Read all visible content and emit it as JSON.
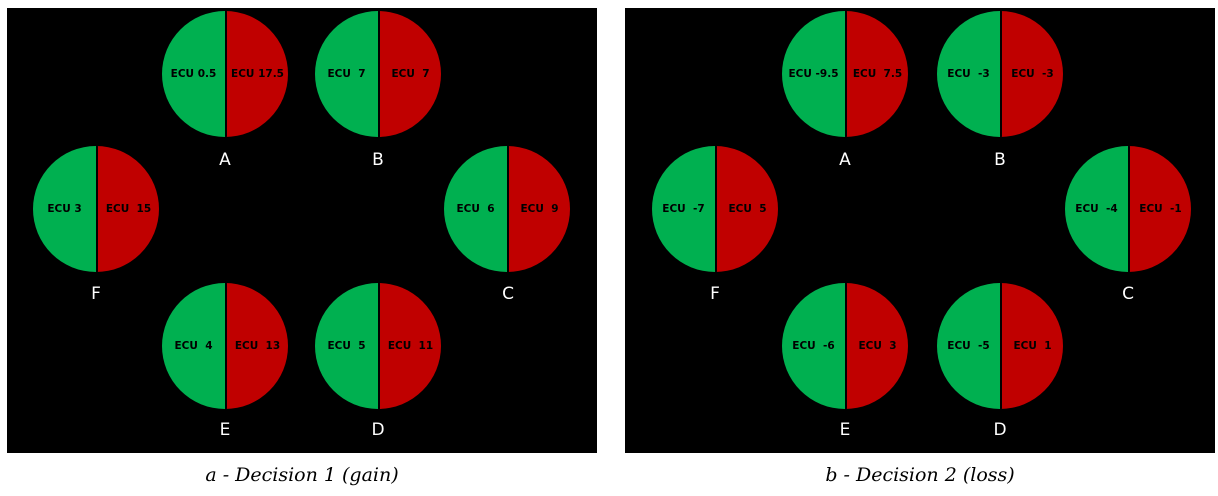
{
  "panels": [
    {
      "caption": "a - Decision 1 (gain)",
      "wheels": {
        "A": {
          "label": "A",
          "green": "ECU 0.5",
          "red": "ECU 17.5"
        },
        "B": {
          "label": "B",
          "green": "ECU  7",
          "red": "ECU  7"
        },
        "C": {
          "label": "C",
          "green": "ECU  6",
          "red": "ECU  9"
        },
        "D": {
          "label": "D",
          "green": "ECU  5",
          "red": "ECU  11"
        },
        "E": {
          "label": "E",
          "green": "ECU  4",
          "red": "ECU  13"
        },
        "F": {
          "label": "F",
          "green": "ECU 3",
          "red": "ECU  15"
        }
      }
    },
    {
      "caption": "b - Decision 2 (loss)",
      "wheels": {
        "A": {
          "label": "A",
          "green": "ECU -9.5",
          "red": "ECU  7.5"
        },
        "B": {
          "label": "B",
          "green": "ECU  -3",
          "red": "ECU  -3"
        },
        "C": {
          "label": "C",
          "green": "ECU  -4",
          "red": "ECU  -1"
        },
        "D": {
          "label": "D",
          "green": "ECU  -5",
          "red": "ECU  1"
        },
        "E": {
          "label": "E",
          "green": "ECU  -6",
          "red": "ECU  3"
        },
        "F": {
          "label": "F",
          "green": "ECU  -7",
          "red": "ECU  5"
        }
      }
    }
  ],
  "colors": {
    "green": "#00b050",
    "red": "#c00000",
    "background": "#000000"
  }
}
